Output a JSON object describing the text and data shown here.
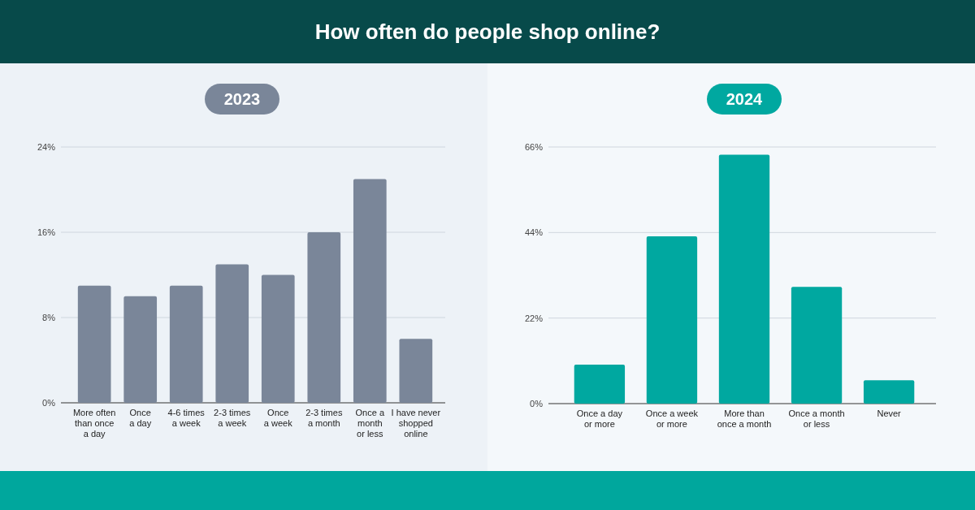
{
  "chart_data": [
    {
      "type": "bar",
      "title": "2023",
      "annotations": [
        "How often do people shop online?"
      ],
      "categories": [
        "More often\nthan once\na day",
        "Once\na day",
        "4-6 times\na week",
        "2-3 times\na week",
        "Once\na week",
        "2-3 times\na month",
        "Once a\nmonth\nor less",
        "I have never\nshopped\nonline"
      ],
      "values": [
        11,
        10,
        11,
        13,
        12,
        16,
        21,
        6
      ],
      "color": "#7a8699",
      "ylim": [
        0,
        24
      ],
      "yticks": [
        {
          "value": 0,
          "label": "0%"
        },
        {
          "value": 8,
          "label": "8%"
        },
        {
          "value": 16,
          "label": "16%"
        },
        {
          "value": 24,
          "label": "24%"
        }
      ],
      "grid": "y"
    },
    {
      "type": "bar",
      "title": "2024",
      "categories": [
        "Once a day\nor more",
        "Once a week\nor more",
        "More than\nonce a month",
        "Once a month\nor less",
        "Never"
      ],
      "values": [
        10,
        43,
        64,
        30,
        6
      ],
      "color": "#00a8a0",
      "ylim": [
        0,
        66
      ],
      "yticks": [
        {
          "value": 0,
          "label": "0%"
        },
        {
          "value": 22,
          "label": "22%"
        },
        {
          "value": 44,
          "label": "44%"
        },
        {
          "value": 66,
          "label": "66%"
        }
      ],
      "grid": "y"
    }
  ]
}
